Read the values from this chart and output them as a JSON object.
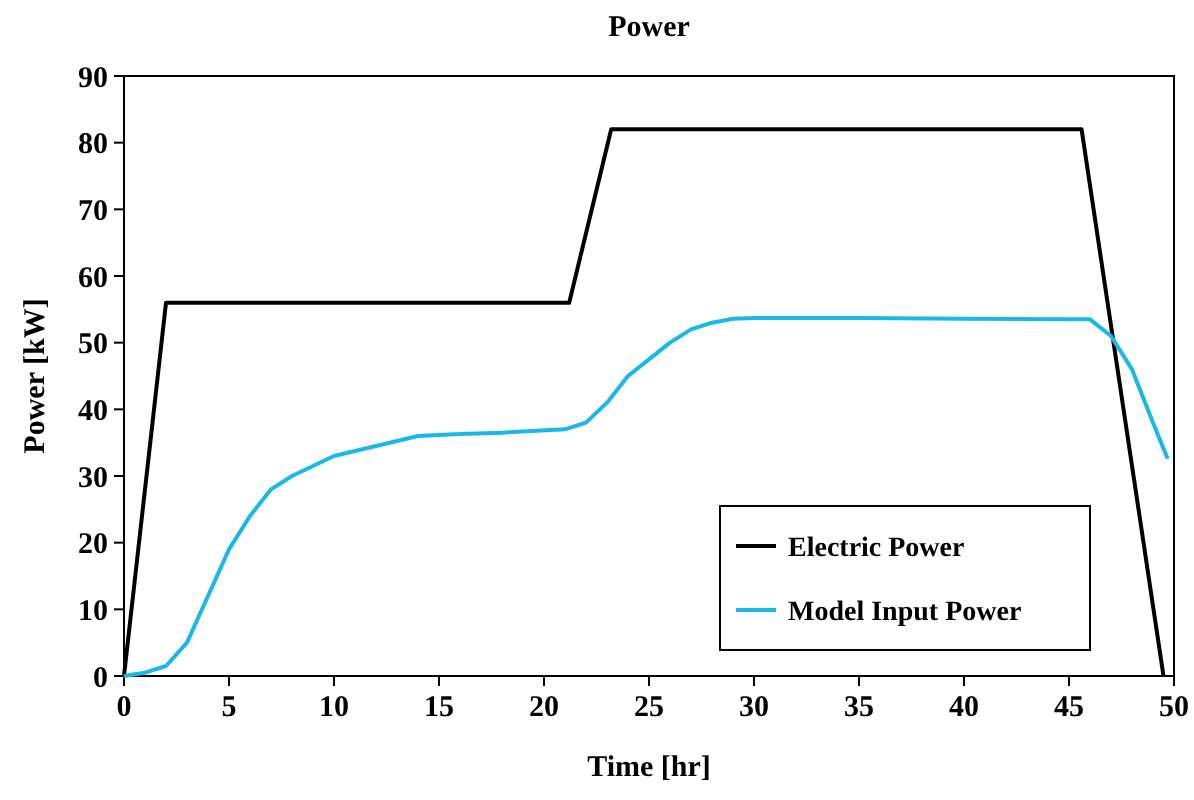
{
  "chart_data": {
    "type": "line",
    "title": "Power",
    "xlabel": "Time [hr]",
    "ylabel": "Power [kW]",
    "xlim": [
      0,
      50
    ],
    "xticks": [
      0,
      5,
      10,
      15,
      20,
      25,
      30,
      35,
      40,
      45,
      50
    ],
    "ylim": [
      0,
      90
    ],
    "yticks": [
      0,
      10,
      20,
      30,
      40,
      50,
      60,
      70,
      80,
      90
    ],
    "legend": "bottom right",
    "grid": false,
    "line_style": "solid",
    "series": [
      {
        "name": "Electric Power",
        "color": "#000000",
        "x": [
          0,
          2,
          21.2,
          23.2,
          45.6,
          49.5
        ],
        "values": [
          0,
          56,
          56,
          82,
          82,
          0
        ]
      },
      {
        "name": "Model Input Power",
        "color": "#1ab8e8",
        "x": [
          0,
          1,
          2,
          3,
          4,
          5,
          6,
          7,
          8,
          9,
          10,
          12,
          14,
          16,
          18,
          21,
          22,
          23,
          24,
          25,
          26,
          27,
          28,
          29,
          30,
          35,
          40,
          45,
          46,
          47,
          48,
          49,
          49.7
        ],
        "values": [
          0,
          0.5,
          1.5,
          5,
          12,
          19,
          24,
          28,
          30,
          31.5,
          33,
          34.5,
          36,
          36.3,
          36.5,
          37,
          38,
          41,
          45,
          47.5,
          50,
          52,
          53,
          53.6,
          53.7,
          53.7,
          53.6,
          53.5,
          53.5,
          51,
          46,
          38,
          32.6
        ]
      }
    ]
  }
}
